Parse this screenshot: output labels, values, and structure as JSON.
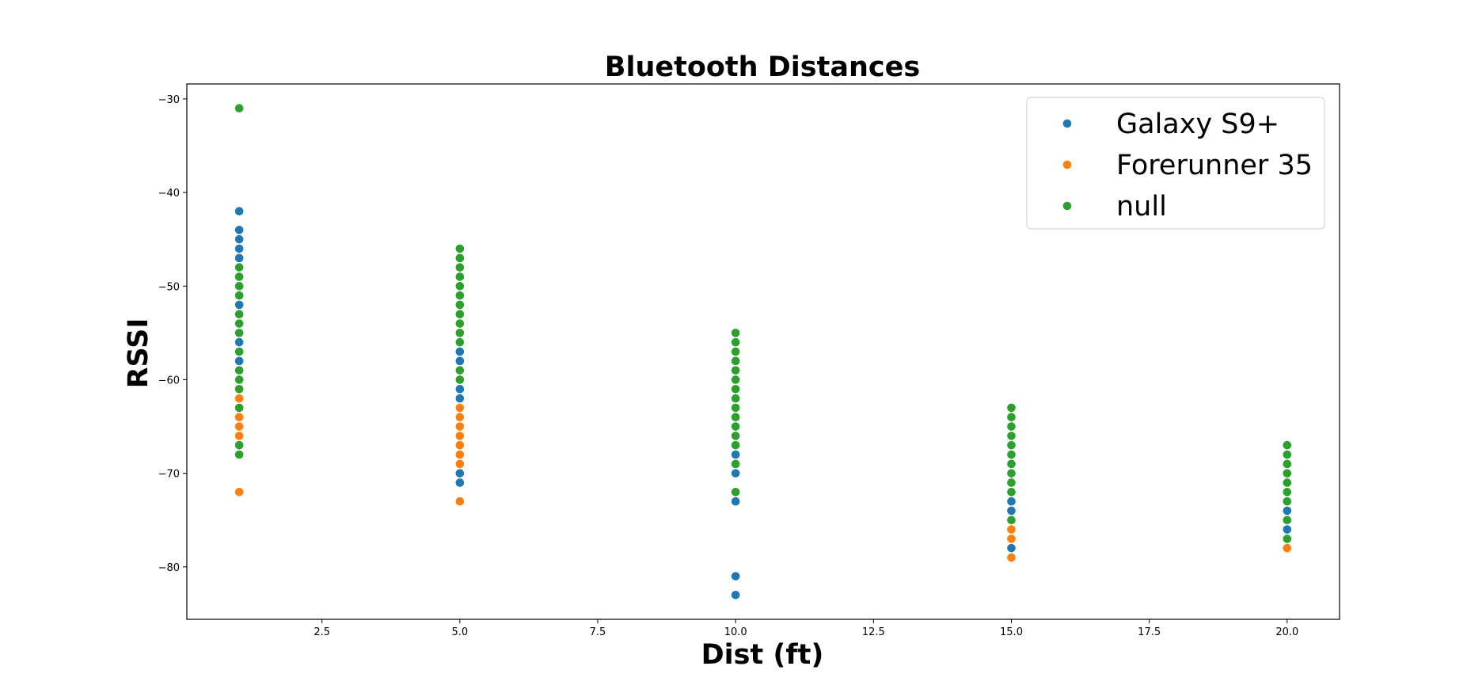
{
  "chart_data": {
    "type": "scatter",
    "title": "Bluetooth Distances",
    "xlabel": "Dist (ft)",
    "ylabel": "RSSI",
    "xlim": [
      0.05,
      20.95
    ],
    "ylim": [
      -85.6,
      -28.4
    ],
    "xticks": [
      2.5,
      5.0,
      7.5,
      10.0,
      12.5,
      15.0,
      17.5,
      20.0
    ],
    "xtick_labels": [
      "2.5",
      "5.0",
      "7.5",
      "10.0",
      "12.5",
      "15.0",
      "17.5",
      "20.0"
    ],
    "yticks": [
      -30,
      -40,
      -50,
      -60,
      -70,
      -80
    ],
    "ytick_labels": [
      "−30",
      "−40",
      "−50",
      "−60",
      "−70",
      "−80"
    ],
    "grid": false,
    "legend_position": "top-right",
    "series": [
      {
        "name": "Galaxy S9+",
        "color": "#1f77b4",
        "points": [
          [
            1,
            -42
          ],
          [
            1,
            -44
          ],
          [
            1,
            -45
          ],
          [
            1,
            -46
          ],
          [
            1,
            -47
          ],
          [
            1,
            -52
          ],
          [
            1,
            -56
          ],
          [
            1,
            -58
          ],
          [
            5,
            -57
          ],
          [
            5,
            -58
          ],
          [
            5,
            -61
          ],
          [
            5,
            -62
          ],
          [
            5,
            -70
          ],
          [
            5,
            -71
          ],
          [
            10,
            -68
          ],
          [
            10,
            -70
          ],
          [
            10,
            -73
          ],
          [
            10,
            -81
          ],
          [
            10,
            -83
          ],
          [
            15,
            -73
          ],
          [
            15,
            -74
          ],
          [
            15,
            -78
          ],
          [
            20,
            -74
          ],
          [
            20,
            -76
          ]
        ]
      },
      {
        "name": "Forerunner 35",
        "color": "#ff7f0e",
        "points": [
          [
            1,
            -62
          ],
          [
            1,
            -64
          ],
          [
            1,
            -65
          ],
          [
            1,
            -66
          ],
          [
            1,
            -72
          ],
          [
            5,
            -63
          ],
          [
            5,
            -64
          ],
          [
            5,
            -65
          ],
          [
            5,
            -66
          ],
          [
            5,
            -67
          ],
          [
            5,
            -68
          ],
          [
            5,
            -69
          ],
          [
            5,
            -73
          ],
          [
            15,
            -76
          ],
          [
            15,
            -77
          ],
          [
            15,
            -79
          ],
          [
            20,
            -78
          ]
        ]
      },
      {
        "name": "null",
        "color": "#2ca02c",
        "points": [
          [
            1,
            -31
          ],
          [
            1,
            -48
          ],
          [
            1,
            -49
          ],
          [
            1,
            -50
          ],
          [
            1,
            -51
          ],
          [
            1,
            -53
          ],
          [
            1,
            -54
          ],
          [
            1,
            -55
          ],
          [
            1,
            -57
          ],
          [
            1,
            -59
          ],
          [
            1,
            -60
          ],
          [
            1,
            -61
          ],
          [
            1,
            -63
          ],
          [
            1,
            -67
          ],
          [
            1,
            -68
          ],
          [
            5,
            -46
          ],
          [
            5,
            -47
          ],
          [
            5,
            -48
          ],
          [
            5,
            -49
          ],
          [
            5,
            -50
          ],
          [
            5,
            -51
          ],
          [
            5,
            -52
          ],
          [
            5,
            -53
          ],
          [
            5,
            -54
          ],
          [
            5,
            -55
          ],
          [
            5,
            -56
          ],
          [
            5,
            -59
          ],
          [
            5,
            -60
          ],
          [
            10,
            -55
          ],
          [
            10,
            -56
          ],
          [
            10,
            -57
          ],
          [
            10,
            -58
          ],
          [
            10,
            -59
          ],
          [
            10,
            -60
          ],
          [
            10,
            -61
          ],
          [
            10,
            -62
          ],
          [
            10,
            -63
          ],
          [
            10,
            -64
          ],
          [
            10,
            -65
          ],
          [
            10,
            -66
          ],
          [
            10,
            -67
          ],
          [
            10,
            -69
          ],
          [
            10,
            -72
          ],
          [
            15,
            -63
          ],
          [
            15,
            -64
          ],
          [
            15,
            -65
          ],
          [
            15,
            -66
          ],
          [
            15,
            -67
          ],
          [
            15,
            -68
          ],
          [
            15,
            -69
          ],
          [
            15,
            -70
          ],
          [
            15,
            -71
          ],
          [
            15,
            -72
          ],
          [
            15,
            -75
          ],
          [
            20,
            -67
          ],
          [
            20,
            -68
          ],
          [
            20,
            -69
          ],
          [
            20,
            -70
          ],
          [
            20,
            -71
          ],
          [
            20,
            -72
          ],
          [
            20,
            -73
          ],
          [
            20,
            -75
          ],
          [
            20,
            -77
          ]
        ]
      }
    ]
  }
}
